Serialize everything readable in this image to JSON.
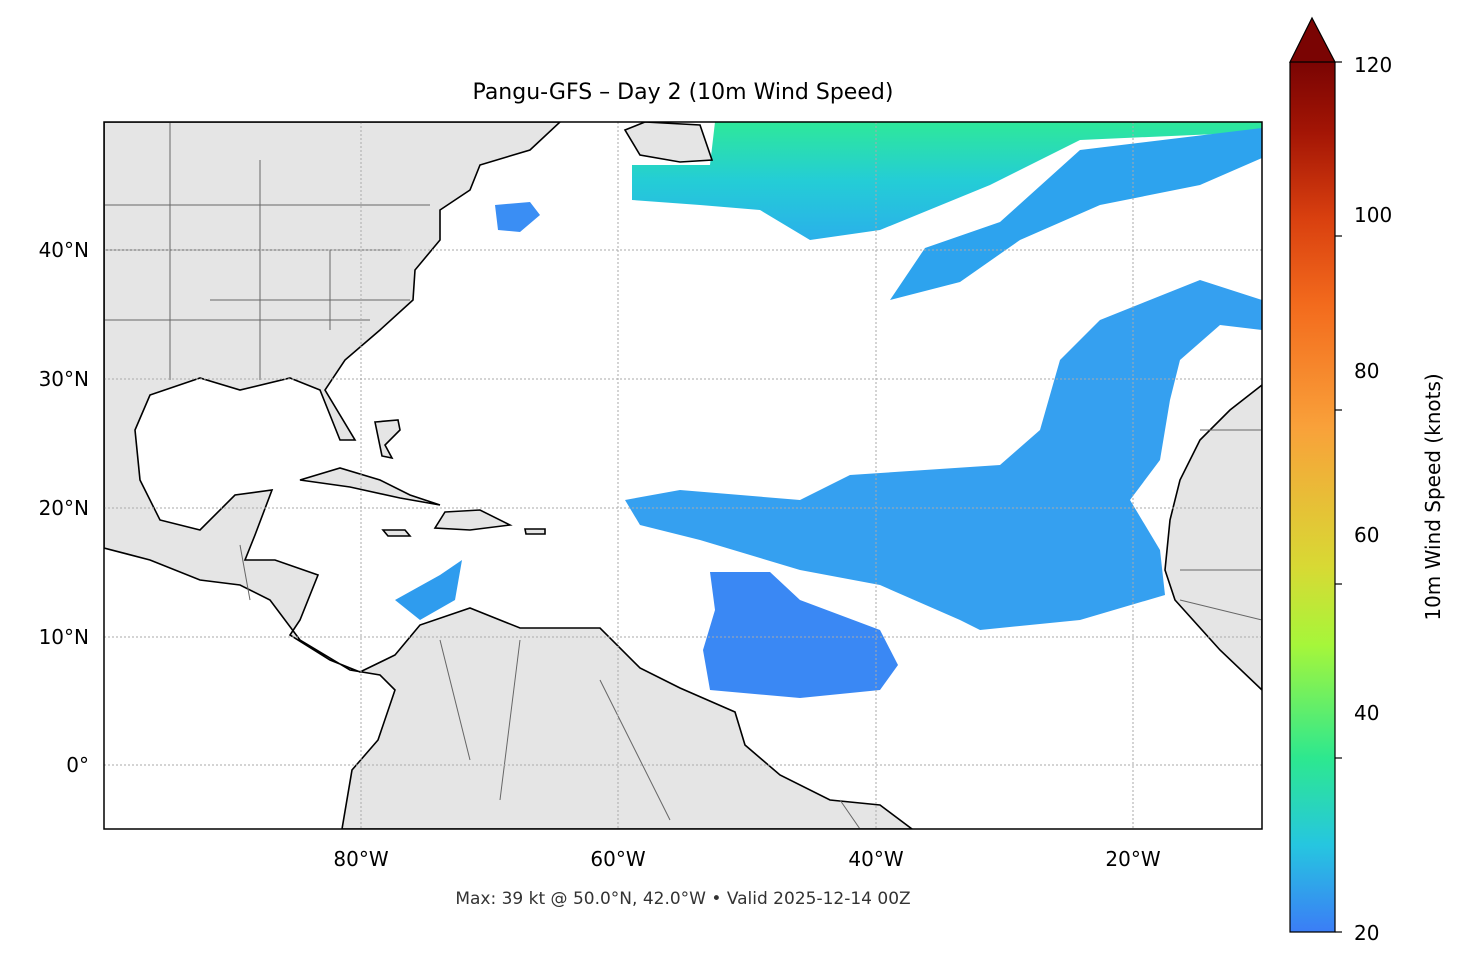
{
  "title": "Pangu-GFS – Day 2 (10m Wind Speed)",
  "footer": "Max: 39 kt @ 50.0°N, 42.0°W • Valid 2025-12-14 00Z",
  "map": {
    "extent": {
      "lon": [
        -100,
        -10
      ],
      "lat": [
        -5,
        50
      ]
    },
    "lon_ticks": [
      {
        "value": -80,
        "label": "80°W"
      },
      {
        "value": -60,
        "label": "60°W"
      },
      {
        "value": -40,
        "label": "40°W"
      },
      {
        "value": -20,
        "label": "20°W"
      }
    ],
    "lat_ticks": [
      {
        "value": 40,
        "label": "40°N"
      },
      {
        "value": 30,
        "label": "30°N"
      },
      {
        "value": 20,
        "label": "20°N"
      },
      {
        "value": 10,
        "label": "10°N"
      },
      {
        "value": 0,
        "label": "0°"
      }
    ],
    "gridlines": true,
    "land_color": "#e5e5e5",
    "wind_threshold_kt": 20
  },
  "colorbar": {
    "label": "10m Wind Speed (knots)",
    "range": [
      20,
      120
    ],
    "extend": "max",
    "colormap": "turbo",
    "ticks": [
      {
        "value": 20,
        "label": "20"
      },
      {
        "value": 40,
        "label": "40"
      },
      {
        "value": 60,
        "label": "60"
      },
      {
        "value": 80,
        "label": "80"
      },
      {
        "value": 100,
        "label": "100"
      },
      {
        "value": 120,
        "label": "120"
      }
    ],
    "stops": [
      "#3b7df6",
      "#26c6e0",
      "#2de88f",
      "#a6f63a",
      "#d8d934",
      "#f9a13a",
      "#f36b1d",
      "#d9400f",
      "#a31505",
      "#7a0403"
    ]
  }
}
